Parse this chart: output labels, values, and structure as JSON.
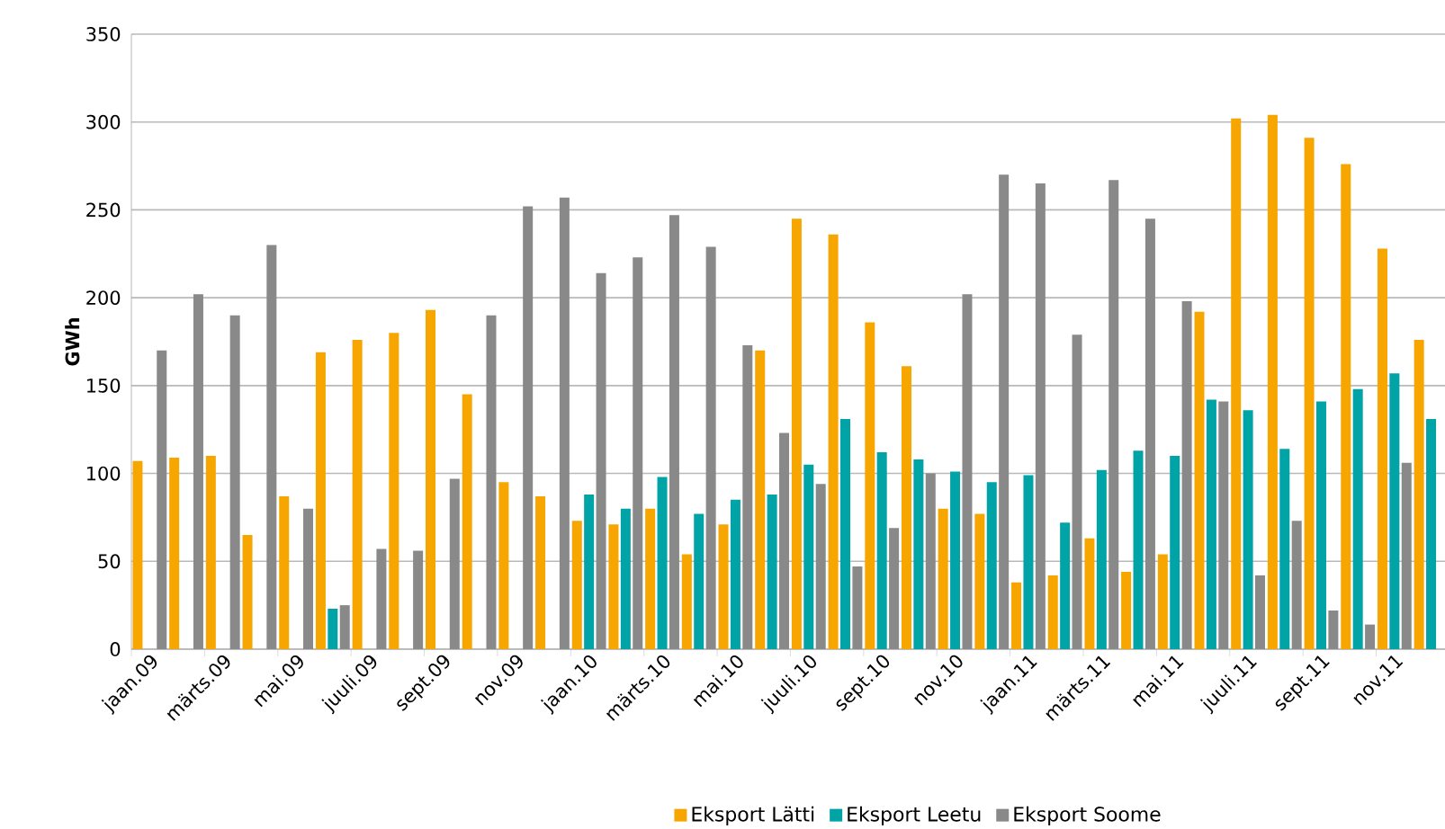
{
  "chart_data": {
    "type": "bar",
    "ylabel": "GWh",
    "categories": [
      "jaan.09",
      null,
      "märts.09",
      null,
      "mai.09",
      null,
      "juuli.09",
      null,
      "sept.09",
      null,
      "nov.09",
      null,
      "jaan.10",
      null,
      "märts.10",
      null,
      "mai.10",
      null,
      "juuli.10",
      null,
      "sept.10",
      null,
      "nov.10",
      null,
      "jaan.11",
      null,
      "märts.11",
      null,
      "mai.11",
      null,
      "juuli.11",
      null,
      "sept.11",
      null,
      "nov.11",
      null
    ],
    "series": [
      {
        "name": "Eksport Lätti",
        "color": "#f7a600",
        "values": [
          107,
          109,
          110,
          65,
          87,
          169,
          176,
          180,
          193,
          145,
          95,
          87,
          73,
          71,
          80,
          54,
          71,
          170,
          245,
          236,
          186,
          161,
          80,
          77,
          38,
          42,
          63,
          44,
          54,
          192,
          302,
          304,
          291,
          276,
          228,
          176
        ]
      },
      {
        "name": "Eksport Leetu",
        "color": "#00a3a6",
        "values": [
          null,
          null,
          null,
          null,
          null,
          23,
          null,
          null,
          null,
          null,
          null,
          null,
          88,
          80,
          98,
          77,
          85,
          88,
          105,
          131,
          112,
          108,
          101,
          95,
          99,
          72,
          102,
          113,
          110,
          142,
          136,
          114,
          141,
          148,
          157,
          131
        ]
      },
      {
        "name": "Eksport Soome",
        "color": "#898989",
        "values": [
          170,
          202,
          190,
          230,
          80,
          25,
          57,
          56,
          97,
          190,
          252,
          257,
          214,
          223,
          247,
          229,
          173,
          123,
          94,
          47,
          69,
          100,
          202,
          270,
          265,
          179,
          267,
          245,
          198,
          141,
          42,
          73,
          22,
          14,
          106,
          null
        ]
      }
    ],
    "ylim": [
      0,
      350
    ],
    "yticks": [
      0,
      50,
      100,
      150,
      200,
      250,
      300,
      350
    ],
    "grid": "y",
    "legend": "bottom"
  }
}
